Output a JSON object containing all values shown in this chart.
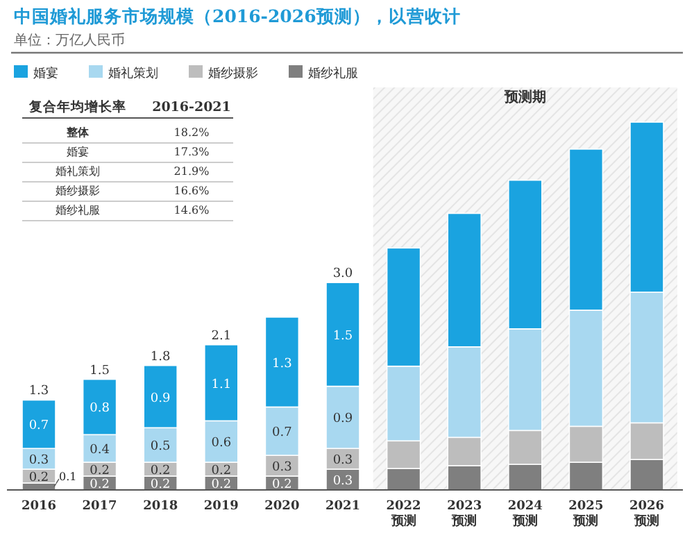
{
  "chart_data": {
    "type": "bar",
    "stacked": true,
    "title": "中国婚礼服务市场规模（2016-2026预测），以营收计",
    "subtitle": "单位：万亿人民币",
    "categories": [
      "2016",
      "2017",
      "2018",
      "2019",
      "2020",
      "2021",
      "2022\n预测",
      "2023\n预测",
      "2024\n预测",
      "2025\n预测",
      "2026\n预测"
    ],
    "series": [
      {
        "name": "婚纱礼服",
        "color": "#7f7f7f",
        "values": [
          0.1,
          0.2,
          0.2,
          0.2,
          0.2,
          0.3,
          0.31,
          0.35,
          0.37,
          0.4,
          0.44
        ],
        "value_labels": [
          "0.1",
          "0.2",
          "0.2",
          "0.2",
          "0.2",
          "0.3",
          null,
          null,
          null,
          null,
          null
        ]
      },
      {
        "name": "婚纱摄影",
        "color": "#bdbdbd",
        "values": [
          0.2,
          0.2,
          0.2,
          0.2,
          0.3,
          0.3,
          0.4,
          0.41,
          0.49,
          0.52,
          0.53
        ],
        "value_labels": [
          "0.2",
          "0.2",
          "0.2",
          "0.2",
          "0.3",
          "0.3",
          null,
          null,
          null,
          null,
          null
        ]
      },
      {
        "name": "婚礼策划",
        "color": "#a8d8f0",
        "values": [
          0.3,
          0.4,
          0.5,
          0.6,
          0.7,
          0.9,
          1.08,
          1.31,
          1.47,
          1.68,
          1.89
        ],
        "value_labels": [
          "0.3",
          "0.4",
          "0.5",
          "0.6",
          "0.7",
          "0.9",
          null,
          null,
          null,
          null,
          null
        ]
      },
      {
        "name": "婚宴",
        "color": "#1aa3e0",
        "values": [
          0.7,
          0.8,
          0.9,
          1.1,
          1.3,
          1.5,
          1.71,
          1.93,
          2.15,
          2.33,
          2.46
        ],
        "value_labels": [
          "0.7",
          "0.8",
          "0.9",
          "1.1",
          "1.3",
          "1.5",
          null,
          null,
          null,
          null,
          null
        ]
      }
    ],
    "totals": [
      "1.3",
      "1.5",
      "1.8",
      "2.1",
      null,
      "3.0",
      null,
      null,
      null,
      null,
      null
    ],
    "bands": [
      {
        "axis": "x",
        "from": "2022\n预测",
        "to": "2026\n预测",
        "label": "预测期",
        "color": "#e6e6e6"
      }
    ],
    "annotations": [
      "复合年均增长率",
      "2016-2021",
      "整体",
      "18.2%",
      "婚宴",
      "17.3%",
      "婚礼策划",
      "21.9%",
      "婚纱摄影",
      "16.6%",
      "婚纱礼服",
      "14.6%"
    ],
    "legend": "top left"
  }
}
